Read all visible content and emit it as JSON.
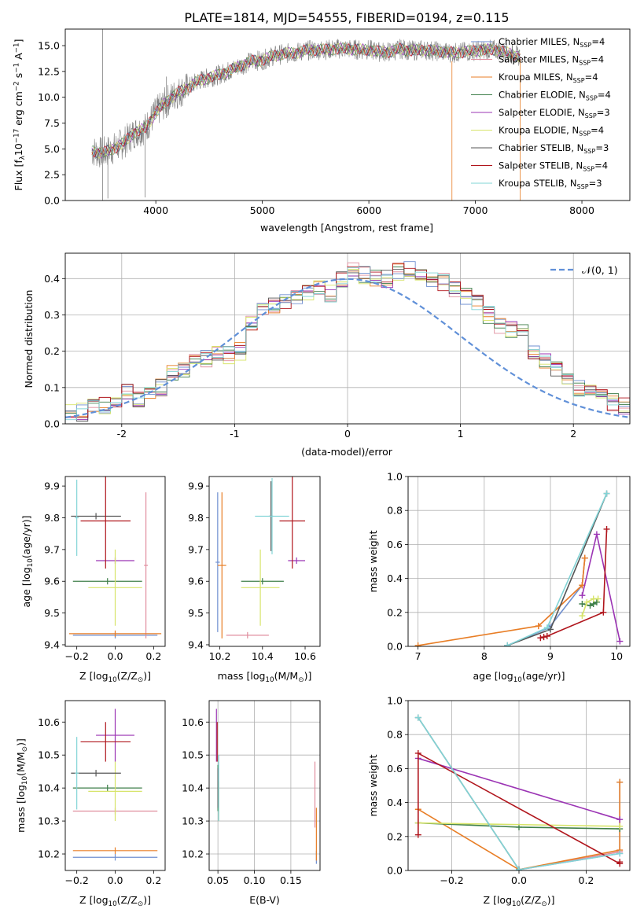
{
  "title": "PLATE=1814, MJD=54555, FIBERID=0194, z=0.115",
  "colors": {
    "Chabrier MILES": "#6f8fd0",
    "Salpeter MILES": "#e08e9e",
    "Kroupa MILES": "#e87e26",
    "Chabrier ELODIE": "#3f7f4a",
    "Salpeter ELODIE": "#9b34b4",
    "Kroupa ELODIE": "#d7e46a",
    "Chabrier STELIB": "#555555",
    "Salpeter STELIB": "#b0151c",
    "Kroupa STELIB": "#82d4d6",
    "gaussian": "#6090d8"
  },
  "chart_data": [
    {
      "id": "spectrum",
      "type": "line",
      "xlabel": "wavelength [Angstrom, rest frame]",
      "ylabel_parts": [
        "Flux [f",
        "λ",
        "10",
        "−17",
        " erg cm",
        "−2",
        " s",
        "−1",
        " A",
        "−1",
        "]"
      ],
      "xlim": [
        3150,
        8450
      ],
      "ylim": [
        0,
        16.6
      ],
      "xticks": [
        4000,
        5000,
        6000,
        7000,
        8000
      ],
      "yticks": [
        0.0,
        2.5,
        5.0,
        7.5,
        10.0,
        12.5,
        15.0
      ],
      "grid": false,
      "legend_position": "right",
      "legend": [
        {
          "label": "Chabrier MILES, N",
          "sub": "SSP",
          "tail": "=4"
        },
        {
          "label": "Salpeter MILES, N",
          "sub": "SSP",
          "tail": "=4"
        },
        {
          "label": "Kroupa MILES, N",
          "sub": "SSP",
          "tail": "=4"
        },
        {
          "label": "Chabrier ELODIE, N",
          "sub": "SSP",
          "tail": "=4"
        },
        {
          "label": "Salpeter ELODIE, N",
          "sub": "SSP",
          "tail": "=3"
        },
        {
          "label": "Kroupa ELODIE, N",
          "sub": "SSP",
          "tail": "=4"
        },
        {
          "label": "Chabrier STELIB, N",
          "sub": "SSP",
          "tail": "=3"
        },
        {
          "label": "Salpeter STELIB, N",
          "sub": "SSP",
          "tail": "=4"
        },
        {
          "label": "Kroupa STELIB, N",
          "sub": "SSP",
          "tail": "=3"
        }
      ],
      "data_continuum": [
        [
          3400,
          4.8
        ],
        [
          3500,
          4.6
        ],
        [
          3600,
          5.0
        ],
        [
          3700,
          5.6
        ],
        [
          3800,
          6.6
        ],
        [
          3900,
          7.0
        ],
        [
          4000,
          8.5
        ],
        [
          4100,
          9.6
        ],
        [
          4200,
          10.4
        ],
        [
          4300,
          10.9
        ],
        [
          4400,
          11.6
        ],
        [
          4500,
          11.9
        ],
        [
          4600,
          12.2
        ],
        [
          4700,
          12.6
        ],
        [
          4800,
          13.1
        ],
        [
          4900,
          13.5
        ],
        [
          5000,
          13.6
        ],
        [
          5100,
          14.0
        ],
        [
          5200,
          14.2
        ],
        [
          5300,
          14.3
        ],
        [
          5400,
          14.5
        ],
        [
          5500,
          14.6
        ],
        [
          5600,
          14.6
        ],
        [
          5700,
          14.7
        ],
        [
          5800,
          14.7
        ],
        [
          5900,
          14.6
        ],
        [
          6000,
          14.6
        ],
        [
          6100,
          14.4
        ],
        [
          6200,
          14.4
        ],
        [
          6300,
          14.7
        ],
        [
          6400,
          14.5
        ],
        [
          6500,
          14.6
        ],
        [
          6600,
          14.5
        ],
        [
          6700,
          14.4
        ],
        [
          6800,
          14.3
        ],
        [
          6900,
          14.4
        ],
        [
          7000,
          14.5
        ],
        [
          7100,
          14.6
        ],
        [
          7200,
          14.6
        ],
        [
          7300,
          14.3
        ],
        [
          7400,
          14.0
        ]
      ],
      "spikes": [
        [
          3500,
          16.6,
          0
        ],
        [
          3550,
          4.0,
          0.2
        ],
        [
          3900,
          6.5,
          0.3
        ],
        [
          4100,
          8.0,
          12.0
        ],
        [
          6780,
          13.5,
          0
        ],
        [
          7420,
          13.7,
          0
        ]
      ]
    },
    {
      "id": "residual-histogram",
      "type": "histogram",
      "xlabel": "(data-model)/error",
      "ylabel": "Normed distribution",
      "xlim": [
        -2.5,
        2.5
      ],
      "ylim": [
        0,
        0.47
      ],
      "xticks": [
        -2,
        -1,
        0,
        1,
        2
      ],
      "yticks": [
        0.0,
        0.1,
        0.2,
        0.3,
        0.4
      ],
      "grid": true,
      "legend_position": "top-right",
      "legend": [
        {
          "label": "𝒩(0, 1)",
          "style": "dashed"
        }
      ],
      "bin_width": 0.1,
      "bin_start": -2.5,
      "base_values": [
        0.028,
        0.032,
        0.045,
        0.05,
        0.06,
        0.09,
        0.07,
        0.09,
        0.1,
        0.14,
        0.15,
        0.17,
        0.18,
        0.2,
        0.19,
        0.2,
        0.28,
        0.31,
        0.33,
        0.34,
        0.35,
        0.36,
        0.38,
        0.36,
        0.4,
        0.42,
        0.41,
        0.4,
        0.4,
        0.42,
        0.43,
        0.42,
        0.4,
        0.39,
        0.37,
        0.35,
        0.33,
        0.3,
        0.27,
        0.26,
        0.25,
        0.2,
        0.17,
        0.15,
        0.12,
        0.1,
        0.09,
        0.07,
        0.06,
        0.05,
        0.04
      ]
    },
    {
      "id": "age-vs-Z",
      "type": "errorbar",
      "xlabel": "Z [log10(Z/Z⊙)]",
      "xlabel_parts": [
        "Z [log",
        "10",
        "(Z/Z",
        "⊙",
        ")]"
      ],
      "ylabel_parts": [
        "age  [log",
        "10",
        "(age/yr)]"
      ],
      "xlim": [
        -0.26,
        0.26
      ],
      "ylim": [
        9.395,
        9.93
      ],
      "xticks": [
        -0.2,
        0.0,
        0.2
      ],
      "xticklabels": [
        "−0.2",
        "0.0",
        "0.2"
      ],
      "yticks": [
        9.4,
        9.5,
        9.6,
        9.7,
        9.8,
        9.9
      ],
      "grid": false,
      "points": [
        {
          "model": "Chabrier MILES",
          "x": 0.0,
          "xerr": 0.22,
          "y": 9.43,
          "yerr": 0.01
        },
        {
          "model": "Salpeter MILES",
          "x": 0.16,
          "xerr": 0.01,
          "y": 9.65,
          "yerr": 0.23
        },
        {
          "model": "Kroupa MILES",
          "x": 0.0,
          "xerr": 0.24,
          "y": 9.435,
          "yerr": 0.01
        },
        {
          "model": "Chabrier ELODIE",
          "x": -0.04,
          "xerr": 0.18,
          "y": 9.6,
          "yerr": 0.01
        },
        {
          "model": "Salpeter ELODIE",
          "x": 0.0,
          "xerr": 0.1,
          "y": 9.665,
          "yerr": 0.01
        },
        {
          "model": "Kroupa ELODIE",
          "x": 0.0,
          "xerr": 0.14,
          "y": 9.58,
          "yerr": 0.12
        },
        {
          "model": "Chabrier STELIB",
          "x": -0.1,
          "xerr": 0.13,
          "y": 9.805,
          "yerr": 0.01
        },
        {
          "model": "Salpeter STELIB",
          "x": -0.05,
          "xerr": 0.13,
          "y": 9.79,
          "yerr": 0.15
        },
        {
          "model": "Kroupa STELIB",
          "x": -0.2,
          "xerr": 0.01,
          "y": 9.8,
          "yerr": 0.12
        }
      ]
    },
    {
      "id": "age-vs-mass",
      "type": "errorbar",
      "xlabel_parts": [
        "mass [log",
        "10",
        "(M/M",
        "⊙",
        ")]"
      ],
      "xlim": [
        10.15,
        10.67
      ],
      "ylim": [
        9.395,
        9.93
      ],
      "xticks": [
        10.2,
        10.4,
        10.6
      ],
      "xticklabels": [
        "10.2",
        "10.4",
        "10.6"
      ],
      "yticks": [
        9.4,
        9.5,
        9.6,
        9.7,
        9.8,
        9.9
      ],
      "grid": false,
      "points": [
        {
          "model": "Chabrier MILES",
          "x": 10.19,
          "xerr": 0.01,
          "y": 9.66,
          "yerr": 0.22
        },
        {
          "model": "Salpeter MILES",
          "x": 10.33,
          "xerr": 0.1,
          "y": 9.43,
          "yerr": 0.01
        },
        {
          "model": "Kroupa MILES",
          "x": 10.21,
          "xerr": 0.02,
          "y": 9.65,
          "yerr": 0.23
        },
        {
          "model": "Chabrier ELODIE",
          "x": 10.4,
          "xerr": 0.1,
          "y": 9.6,
          "yerr": 0.01
        },
        {
          "model": "Salpeter ELODIE",
          "x": 10.56,
          "xerr": 0.04,
          "y": 9.665,
          "yerr": 0.01
        },
        {
          "model": "Kroupa ELODIE",
          "x": 10.39,
          "xerr": 0.09,
          "y": 9.58,
          "yerr": 0.12
        },
        {
          "model": "Chabrier STELIB",
          "x": 10.44,
          "xerr": 0.01,
          "y": 9.805,
          "yerr": 0.11
        },
        {
          "model": "Salpeter STELIB",
          "x": 10.54,
          "xerr": 0.06,
          "y": 9.79,
          "yerr": 0.15
        },
        {
          "model": "Kroupa STELIB",
          "x": 10.445,
          "xerr": 0.08,
          "y": 9.805,
          "yerr": 0.12
        }
      ]
    },
    {
      "id": "mass-weight-vs-age",
      "type": "line",
      "xlabel_parts": [
        "age  [log",
        "10",
        "(age/yr)]"
      ],
      "ylabel": "mass weight",
      "xlim": [
        6.85,
        10.2
      ],
      "ylim": [
        0,
        1.0
      ],
      "xticks": [
        7,
        8,
        9,
        10
      ],
      "xticklabels": [
        "7",
        "8",
        "9",
        "10"
      ],
      "yticks": [
        0.0,
        0.2,
        0.4,
        0.6,
        0.8,
        1.0
      ],
      "grid": true,
      "series": [
        {
          "model": "Chabrier MILES",
          "x": [
            8.35,
            8.98,
            9.48,
            9.52
          ],
          "y": [
            0.005,
            0.11,
            0.36,
            0.52
          ]
        },
        {
          "model": "Salpeter MILES",
          "x": [
            8.82,
            9.48,
            9.52
          ],
          "y": [
            0.12,
            0.36,
            0.52
          ]
        },
        {
          "model": "Kroupa MILES",
          "x": [
            7.0,
            8.82,
            9.48,
            9.52
          ],
          "y": [
            0.005,
            0.12,
            0.36,
            0.52
          ]
        },
        {
          "model": "Chabrier ELODIE",
          "x": [
            9.48,
            9.6,
            9.65,
            9.7
          ],
          "y": [
            0.25,
            0.24,
            0.25,
            0.26
          ]
        },
        {
          "model": "Salpeter ELODIE",
          "x": [
            9.48,
            9.7,
            10.05
          ],
          "y": [
            0.3,
            0.66,
            0.03
          ]
        },
        {
          "model": "Kroupa ELODIE",
          "x": [
            9.48,
            9.55,
            9.65,
            9.72
          ],
          "y": [
            0.18,
            0.26,
            0.28,
            0.28
          ]
        },
        {
          "model": "Chabrier STELIB",
          "x": [
            8.35,
            9.0,
            9.85
          ],
          "y": [
            0.005,
            0.1,
            0.9
          ]
        },
        {
          "model": "Salpeter STELIB",
          "x": [
            8.85,
            8.9,
            8.95,
            9.8,
            9.85
          ],
          "y": [
            0.05,
            0.055,
            0.06,
            0.2,
            0.69
          ]
        },
        {
          "model": "Kroupa STELIB",
          "x": [
            8.35,
            8.95,
            9.85
          ],
          "y": [
            0.005,
            0.11,
            0.9
          ]
        }
      ]
    },
    {
      "id": "mass-vs-Z",
      "type": "errorbar",
      "xlabel_parts": [
        "Z [log",
        "10",
        "(Z/Z",
        "⊙",
        ")]"
      ],
      "ylabel_parts": [
        "mass [log",
        "10",
        "(M/M",
        "⊙",
        ")]"
      ],
      "xlim": [
        -0.26,
        0.26
      ],
      "ylim": [
        10.15,
        10.665
      ],
      "xticks": [
        -0.2,
        0.0,
        0.2
      ],
      "xticklabels": [
        "−0.2",
        "0.0",
        "0.2"
      ],
      "yticks": [
        10.2,
        10.3,
        10.4,
        10.5,
        10.6
      ],
      "grid": false,
      "points": [
        {
          "model": "Chabrier MILES",
          "x": 0.0,
          "xerr": 0.22,
          "y": 10.19,
          "yerr": 0.01
        },
        {
          "model": "Salpeter MILES",
          "x": 0.0,
          "xerr": 0.22,
          "y": 10.33,
          "yerr": 0.01
        },
        {
          "model": "Kroupa MILES",
          "x": 0.0,
          "xerr": 0.22,
          "y": 10.21,
          "yerr": 0.01
        },
        {
          "model": "Chabrier ELODIE",
          "x": -0.04,
          "xerr": 0.18,
          "y": 10.4,
          "yerr": 0.01
        },
        {
          "model": "Salpeter ELODIE",
          "x": 0.0,
          "xerr": 0.1,
          "y": 10.56,
          "yerr": 0.08
        },
        {
          "model": "Kroupa ELODIE",
          "x": 0.0,
          "xerr": 0.14,
          "y": 10.39,
          "yerr": 0.09
        },
        {
          "model": "Chabrier STELIB",
          "x": -0.1,
          "xerr": 0.13,
          "y": 10.445,
          "yerr": 0.01
        },
        {
          "model": "Salpeter STELIB",
          "x": -0.05,
          "xerr": 0.13,
          "y": 10.54,
          "yerr": 0.06
        },
        {
          "model": "Kroupa STELIB",
          "x": -0.2,
          "xerr": 0.01,
          "y": 10.445,
          "yerr": 0.11
        }
      ]
    },
    {
      "id": "mass-vs-ebv",
      "type": "errorbar",
      "xlabel": "E(B-V)",
      "xlim": [
        0.038,
        0.19
      ],
      "ylim": [
        10.15,
        10.665
      ],
      "xticks": [
        0.05,
        0.1,
        0.15
      ],
      "xticklabels": [
        "0.05",
        "0.10",
        "0.15"
      ],
      "yticks": [
        10.2,
        10.3,
        10.4,
        10.5,
        10.6
      ],
      "grid": true,
      "points": [
        {
          "model": "Chabrier MILES",
          "x": 0.185,
          "xerr": 0.0,
          "y": 10.19,
          "yerr": 0.02
        },
        {
          "model": "Salpeter MILES",
          "x": 0.183,
          "xerr": 0.0,
          "y": 10.38,
          "yerr": 0.1
        },
        {
          "model": "Kroupa MILES",
          "x": 0.185,
          "xerr": 0.0,
          "y": 10.26,
          "yerr": 0.08
        },
        {
          "model": "Chabrier ELODIE",
          "x": 0.05,
          "xerr": 0.0,
          "y": 10.4,
          "yerr": 0.07
        },
        {
          "model": "Salpeter ELODIE",
          "x": 0.048,
          "xerr": 0.0,
          "y": 10.56,
          "yerr": 0.08
        },
        {
          "model": "Kroupa ELODIE",
          "x": 0.051,
          "xerr": 0.0,
          "y": 10.36,
          "yerr": 0.06
        },
        {
          "model": "Chabrier STELIB",
          "x": 0.05,
          "xerr": 0.0,
          "y": 10.4,
          "yerr": 0.06
        },
        {
          "model": "Salpeter STELIB",
          "x": 0.049,
          "xerr": 0.0,
          "y": 10.54,
          "yerr": 0.06
        },
        {
          "model": "Kroupa STELIB",
          "x": 0.051,
          "xerr": 0.0,
          "y": 10.4,
          "yerr": 0.1
        }
      ]
    },
    {
      "id": "mass-weight-vs-Z",
      "type": "line",
      "xlabel_parts": [
        "Z [log",
        "10",
        "(Z/Z",
        "⊙",
        ")]"
      ],
      "ylabel": "mass weight",
      "xlim": [
        -0.33,
        0.33
      ],
      "ylim": [
        0,
        1.0
      ],
      "xticks": [
        -0.2,
        0.0,
        0.2
      ],
      "xticklabels": [
        "−0.2",
        "0.0",
        "0.2"
      ],
      "yticks": [
        0.0,
        0.2,
        0.4,
        0.6,
        0.8,
        1.0
      ],
      "grid": true,
      "series": [
        {
          "model": "Chabrier MILES",
          "x": [
            0.0,
            0.3,
            0.3
          ],
          "y": [
            0.005,
            0.1,
            0.52
          ]
        },
        {
          "model": "Salpeter MILES",
          "x": [
            0.0,
            0.3
          ],
          "y": [
            0.005,
            0.11
          ]
        },
        {
          "model": "Kroupa MILES",
          "x": [
            -0.3,
            0.0,
            0.3,
            0.3
          ],
          "y": [
            0.36,
            0.005,
            0.12,
            0.52
          ]
        },
        {
          "model": "Chabrier ELODIE",
          "x": [
            -0.3,
            0.0,
            0.3
          ],
          "y": [
            0.28,
            0.255,
            0.245
          ]
        },
        {
          "model": "Salpeter ELODIE",
          "x": [
            -0.3,
            0.3
          ],
          "y": [
            0.66,
            0.3
          ]
        },
        {
          "model": "Kroupa ELODIE",
          "x": [
            -0.3,
            0.3
          ],
          "y": [
            0.28,
            0.26
          ]
        },
        {
          "model": "Chabrier STELIB",
          "x": [
            -0.3,
            0.0
          ],
          "y": [
            0.9,
            0.005
          ]
        },
        {
          "model": "Salpeter STELIB",
          "x": [
            -0.3,
            -0.3,
            0.3,
            0.3
          ],
          "y": [
            0.21,
            0.69,
            0.04,
            0.05
          ]
        },
        {
          "model": "Kroupa STELIB",
          "x": [
            -0.3,
            0.0,
            0.3
          ],
          "y": [
            0.9,
            0.005,
            0.1
          ]
        }
      ]
    }
  ]
}
